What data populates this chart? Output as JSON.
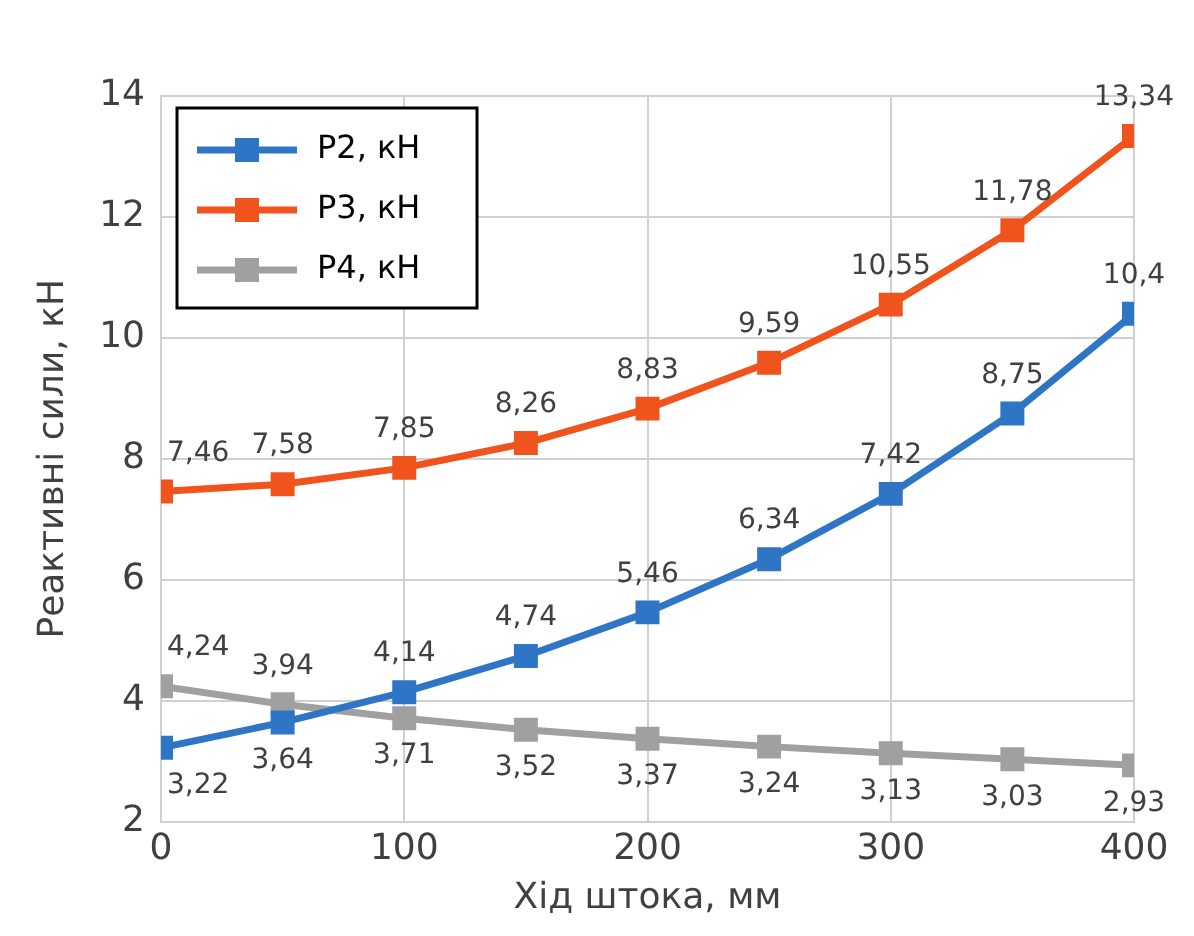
{
  "chart_data": {
    "type": "line",
    "xlabel": "Хід штока, мм",
    "ylabel": "Реактивні сили, кН",
    "x": [
      0,
      50,
      100,
      150,
      200,
      250,
      300,
      350,
      400
    ],
    "series": [
      {
        "name": "P2, кН",
        "color": "#2f75c5",
        "values": [
          3.22,
          3.64,
          4.14,
          4.74,
          5.46,
          6.34,
          7.42,
          8.75,
          10.4
        ],
        "value_labels": [
          "3,22",
          "3,64",
          "4,14",
          "4,74",
          "5,46",
          "6,34",
          "7,42",
          "8,75",
          "10,4"
        ]
      },
      {
        "name": "P3, кН",
        "color": "#f0531c",
        "values": [
          7.46,
          7.58,
          7.85,
          8.26,
          8.83,
          9.59,
          10.55,
          11.78,
          13.34
        ],
        "value_labels": [
          "7,46",
          "7,58",
          "7,85",
          "8,26",
          "8,83",
          "9,59",
          "10,55",
          "11,78",
          "13,34"
        ]
      },
      {
        "name": "P4, кН",
        "color": "#a0a0a0",
        "values": [
          4.24,
          3.94,
          3.71,
          3.52,
          3.37,
          3.24,
          3.13,
          3.03,
          2.93
        ],
        "value_labels": [
          "4,24",
          "3,94",
          "3,71",
          "3,52",
          "3,37",
          "3,24",
          "3,13",
          "3,03",
          "2,93"
        ]
      }
    ],
    "xlim": [
      0,
      400
    ],
    "xticks": [
      0,
      100,
      200,
      300,
      400
    ],
    "ylim": [
      2,
      14
    ],
    "yticks": [
      2,
      4,
      6,
      8,
      10,
      12,
      14
    ],
    "grid": true,
    "legend": "top left",
    "marker": "square",
    "line_style": "solid"
  }
}
